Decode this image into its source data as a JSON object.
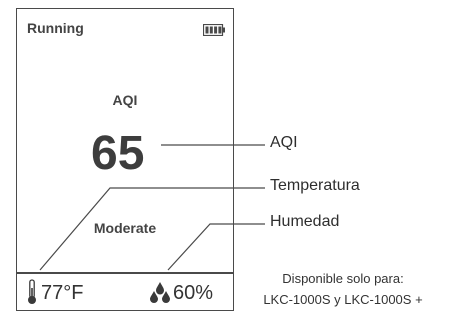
{
  "device": {
    "status": "Running",
    "aqi_label": "AQI",
    "aqi_value": "65",
    "air_quality": "Moderate",
    "temperature": "77°F",
    "humidity": "60%",
    "battery_icon": "battery-full-icon"
  },
  "callouts": {
    "aqi": "AQI",
    "temperature": "Temperatura",
    "humidity": "Humedad"
  },
  "note": {
    "line1": "Disponible solo para:",
    "line2": "LKC-1000S y LKC-1000S +"
  },
  "colors": {
    "line": "#4a4a4a",
    "text": "#333333"
  }
}
